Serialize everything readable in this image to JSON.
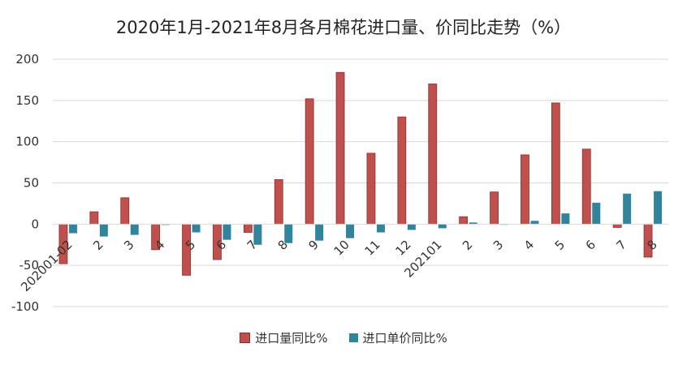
{
  "chart_data": {
    "type": "bar",
    "title": "2020年1月-2021年8月各月棉花进口量、价同比走势（%）",
    "xlabel": "",
    "ylabel": "",
    "ylim": [
      -100,
      200
    ],
    "yticks": [
      200,
      150,
      100,
      50,
      0,
      -50,
      -100
    ],
    "grid": true,
    "legend_position": "bottom",
    "categories": [
      "202001-02",
      "2",
      "3",
      "4",
      "5",
      "6",
      "7",
      "8",
      "9",
      "10",
      "11",
      "12",
      "202101",
      "2",
      "3",
      "4",
      "5",
      "6",
      "7",
      "8"
    ],
    "series": [
      {
        "name": "进口量同比%",
        "color": "#c0504d",
        "values": [
          -48,
          15,
          32,
          -31,
          -62,
          -43,
          -10,
          54,
          152,
          184,
          86,
          130,
          170,
          9,
          39,
          84,
          147,
          91,
          -4,
          -40
        ]
      },
      {
        "name": "进口单价同比%",
        "color": "#31849b",
        "values": [
          -11,
          -15,
          -13,
          -1,
          -10,
          -19,
          -25,
          -23,
          -20,
          -17,
          -10,
          -7,
          -5,
          2,
          0,
          4,
          13,
          26,
          37,
          40
        ]
      }
    ]
  }
}
